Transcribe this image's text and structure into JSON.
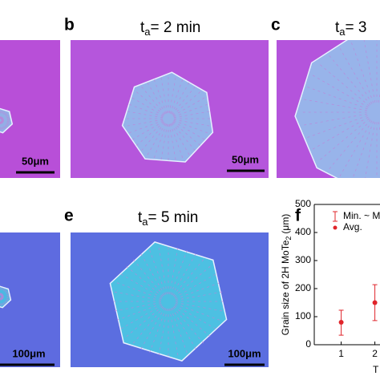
{
  "panels": [
    {
      "scale_bar": "50μm"
    },
    {
      "label": "b",
      "title": {
        "symbol": "t",
        "subscript": "a",
        "text": "= 2 min"
      },
      "scale_bar": "50μm"
    },
    {
      "label": "c",
      "title": {
        "symbol": "t",
        "subscript": "a",
        "text": "= 3"
      }
    },
    {
      "scale_bar": "100μm"
    },
    {
      "label": "e",
      "title": {
        "symbol": "t",
        "subscript": "a",
        "text": "= 5 min"
      },
      "scale_bar": "100μm"
    }
  ],
  "chart_data": {
    "type": "errorbar",
    "label": "f",
    "y_label": {
      "text": "Grain size of 2H MoTe",
      "subscript": "2",
      "unit": "(μm)"
    },
    "x_label": "T",
    "range_name": "Min. ~ M",
    "x": [
      1,
      2
    ],
    "series": [
      {
        "name": "Avg.",
        "color": "#e0242a",
        "values": [
          80,
          150
        ],
        "min": [
          34,
          86
        ],
        "max": [
          123,
          214
        ]
      }
    ],
    "xlim": [
      0.2,
      2.2
    ],
    "xticks": [
      1,
      2
    ],
    "ylim": [
      0,
      500
    ],
    "yticks": [
      0,
      100,
      200,
      300,
      400,
      500
    ]
  }
}
